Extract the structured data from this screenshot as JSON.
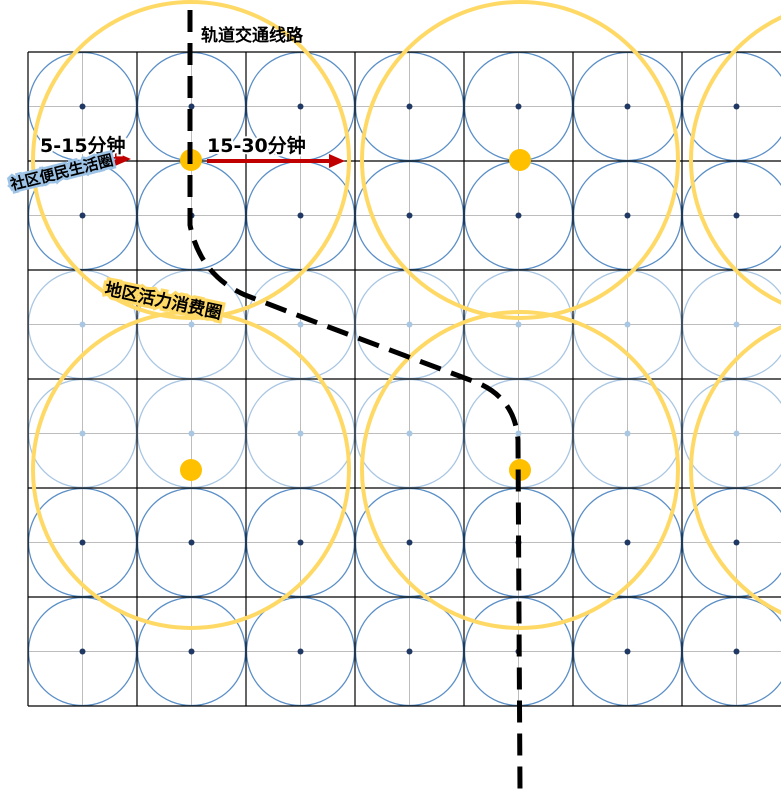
{
  "labels": {
    "rail_line": "轨道交通线路",
    "time_short": "5-15分钟",
    "time_long": "15-30分钟",
    "community_circle": "社区便民生活圈",
    "district_circle": "地区活力消费圈"
  },
  "colors": {
    "background": "#ffffff",
    "grid_line": "#000000",
    "sub_grid_line": "#bdbdbd",
    "small_circle": "#5b8fc7",
    "small_circle_faded": "#a9c6e3",
    "large_circle": "#ffd966",
    "center_dot": "#ffc000",
    "small_dot": "#1f3864",
    "arrow": "#c00000",
    "rail_line": "#000000",
    "label_halo_blue": "#9dc3e6",
    "label_halo_yellow": "#ffd966"
  },
  "icons": {
    "arrow_short": "arrow-right-icon",
    "arrow_long": "arrow-right-icon"
  }
}
